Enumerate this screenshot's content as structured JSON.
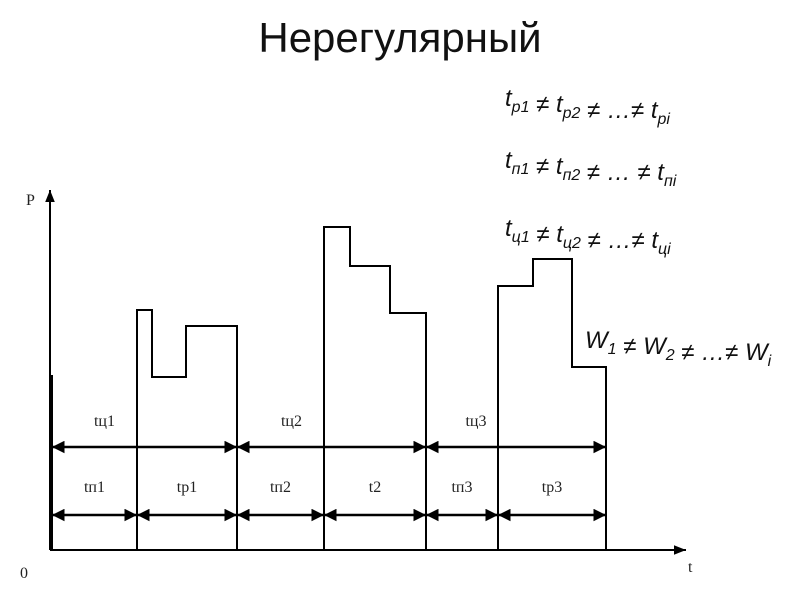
{
  "title": "Нерегулярный",
  "formulas": [
    [
      {
        "t": "t",
        "sub": "р1"
      },
      {
        "t": " ≠ "
      },
      {
        "t": "t",
        "sub": "р2"
      },
      {
        "t": " ≠ …≠ "
      },
      {
        "t": "t",
        "sub": "рi"
      }
    ],
    [
      {
        "t": "t",
        "sub": "п1"
      },
      {
        "t": " ≠ "
      },
      {
        "t": "t",
        "sub": "п2"
      },
      {
        "t": " ≠ … ≠ "
      },
      {
        "t": "t",
        "sub": "пi"
      }
    ],
    [
      {
        "t": "t",
        "sub": "ц1"
      },
      {
        "t": " ≠ "
      },
      {
        "t": "t",
        "sub": "ц2"
      },
      {
        "t": " ≠ …≠ "
      },
      {
        "t": "t",
        "sub": "цi"
      }
    ],
    [
      {
        "t": "W",
        "sub": "1"
      },
      {
        "t": " ≠ "
      },
      {
        "t": "W",
        "sub": "2"
      },
      {
        "t": " ≠ …≠ "
      },
      {
        "t": "W",
        "sub": "i"
      }
    ]
  ],
  "axis": {
    "y": "P",
    "x": "t",
    "origin": "0"
  },
  "cycle_labels": [
    "tц1",
    "tц2",
    "tц3"
  ],
  "phase_labels": [
    "tп1",
    "tр1",
    "tп2",
    "t2",
    "tп3",
    "tр3"
  ]
}
